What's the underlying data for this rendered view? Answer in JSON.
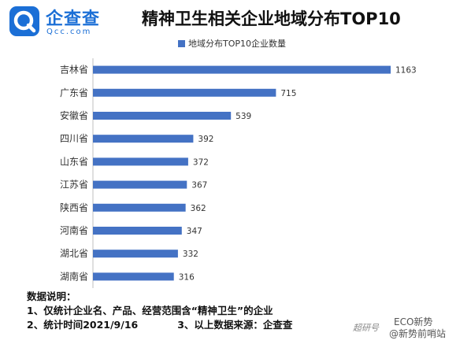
{
  "logo": {
    "name": "企查查",
    "domain": "Qcc.com",
    "brand_color": "#1b6fd6"
  },
  "chart_data": {
    "type": "bar",
    "orientation": "horizontal",
    "title": "精神卫生相关企业地域分布TOP10",
    "categories": [
      "吉林省",
      "广东省",
      "安徽省",
      "四川省",
      "山东省",
      "江苏省",
      "陕西省",
      "河南省",
      "湖北省",
      "湖南省"
    ],
    "series": [
      {
        "name": "地域分布TOP10企业数量",
        "values": [
          1163,
          715,
          539,
          392,
          372,
          367,
          362,
          347,
          332,
          316
        ],
        "color": "#4472c4"
      }
    ],
    "xlim": [
      0,
      1200
    ],
    "grid": false,
    "legend": "top"
  },
  "notes": {
    "heading": "数据说明：",
    "line1": "1、仅统计企业名、产品、经营范围含“精神卫生”的企业",
    "line2": "2、统计时间2021/9/16",
    "line3": "3、以上数据来源：企查查"
  },
  "watermark": {
    "publisher": "超研号",
    "account": "ECO新势",
    "handle": "@新势前哨站"
  }
}
